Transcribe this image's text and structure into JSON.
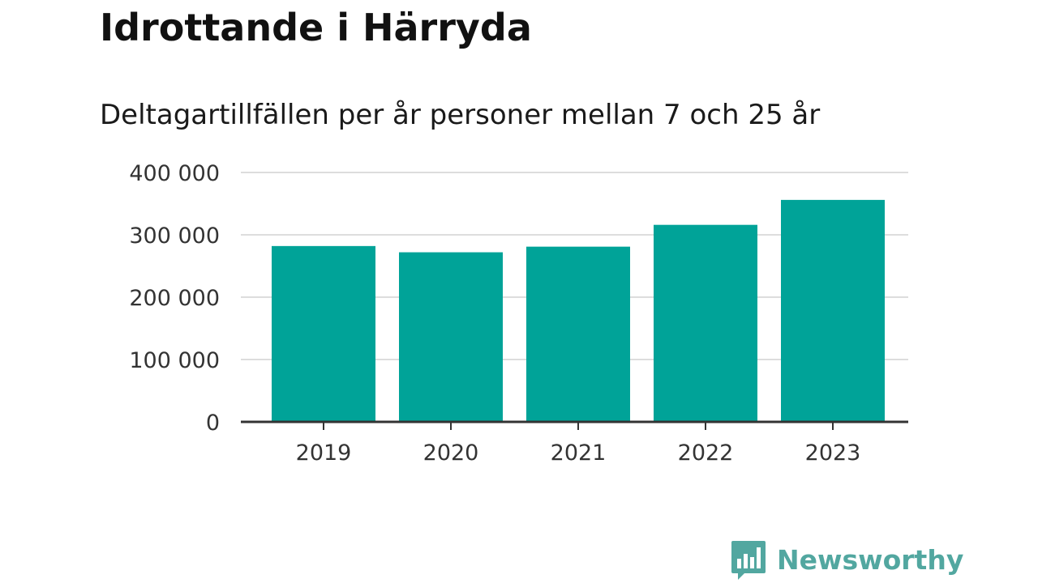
{
  "title": "Idrottande i Härryda",
  "subtitle": "Deltagartillfällen per år personer mellan 7 och 25 år",
  "brand": {
    "name": "Newsworthy",
    "color": "#52a7a0",
    "icon": "newsworthy-logo-icon"
  },
  "colors": {
    "bar": "#00a398",
    "grid": "#dddddd",
    "axis": "#333333"
  },
  "chart_data": {
    "type": "bar",
    "title": "Idrottande i Härryda",
    "subtitle": "Deltagartillfällen per år personer mellan 7 och 25 år",
    "xlabel": "",
    "ylabel": "",
    "categories": [
      "2019",
      "2020",
      "2021",
      "2022",
      "2023"
    ],
    "values": [
      282000,
      272000,
      281000,
      316000,
      356000
    ],
    "ylim": [
      0,
      400000
    ],
    "yticks": [
      0,
      100000,
      200000,
      300000,
      400000
    ],
    "ytick_labels": [
      "0",
      "100 000",
      "200 000",
      "300 000",
      "400 000"
    ],
    "grid": true,
    "legend": "none"
  }
}
